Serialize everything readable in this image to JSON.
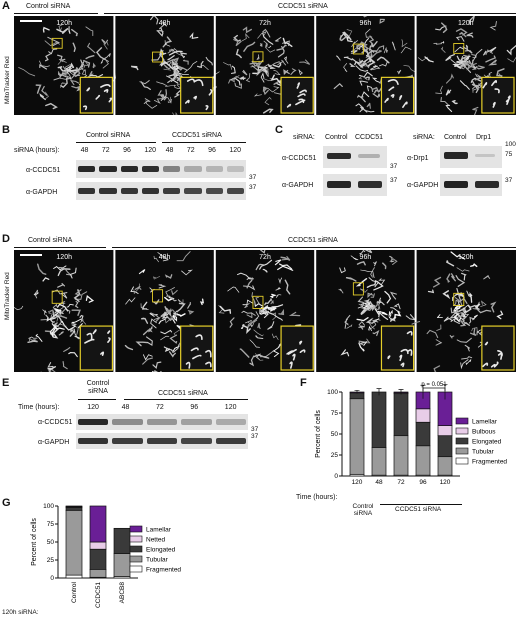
{
  "panels": {
    "A": {
      "letter": "A",
      "control_header": "Control siRNA",
      "treatment_header": "CCDC51 siRNA",
      "stain": "MitoTracker Red",
      "timepoints": [
        "120h",
        "48h",
        "72h",
        "96h",
        "120h"
      ]
    },
    "B": {
      "letter": "B",
      "row_label": "siRNA (hours):",
      "control_header": "Control siRNA",
      "treatment_header": "CCDC51 siRNA",
      "lanes": [
        "48",
        "72",
        "96",
        "120",
        "48",
        "72",
        "96",
        "120"
      ],
      "blots": [
        "α-CCDC51",
        "α-GAPDH"
      ],
      "markers": [
        "37",
        "37"
      ]
    },
    "C": {
      "letter": "C",
      "left": {
        "row_label": "siRNA:",
        "lanes": [
          "Control",
          "CCDC51"
        ],
        "blots": [
          "α-CCDC51",
          "α-GAPDH"
        ],
        "markers": [
          "37",
          "37"
        ]
      },
      "right": {
        "row_label": "siRNA:",
        "lanes": [
          "Control",
          "Drp1"
        ],
        "blots": [
          "α-Drp1",
          "α-GAPDH"
        ],
        "markers": [
          "100",
          "75",
          "37"
        ]
      }
    },
    "D": {
      "letter": "D",
      "control_header": "Control siRNA",
      "treatment_header": "CCDC51 siRNA",
      "stain": "MitoTracker Red",
      "timepoints": [
        "120h",
        "48h",
        "72h",
        "96h",
        "120h"
      ]
    },
    "E": {
      "letter": "E",
      "row_label": "Time (hours):",
      "control_header": "Control siRNA",
      "treatment_header": "CCDC51 siRNA",
      "lanes": [
        "120",
        "48",
        "72",
        "96",
        "120"
      ],
      "blots": [
        "α-CCDC51",
        "α-GAPDH"
      ],
      "markers": [
        "37",
        "37"
      ]
    },
    "F": {
      "letter": "F",
      "pvalue": "p = 0.051",
      "row_label": "Time (hours):",
      "control_label": "Control siRNA",
      "treatment_label": "CCDC51 siRNA"
    },
    "G": {
      "letter": "G",
      "row_label": "120h siRNA:"
    }
  },
  "chart_data": [
    {
      "type": "bar",
      "panel": "F",
      "stacked": true,
      "categories": [
        "120",
        "48",
        "72",
        "96",
        "120"
      ],
      "ylabel": "Percent of cells",
      "ylim": [
        0,
        100
      ],
      "yticks": [
        "0",
        "25",
        "50",
        "75",
        "100"
      ],
      "legend_position": "right",
      "series": [
        {
          "name": "Fragmented",
          "color": "#ffffff",
          "values": [
            2,
            1,
            1,
            1,
            1
          ]
        },
        {
          "name": "Tubular",
          "color": "#9a9a9a",
          "values": [
            90,
            33,
            47,
            35,
            22
          ]
        },
        {
          "name": "Elongated",
          "color": "#3a3a3a",
          "values": [
            7,
            66,
            50,
            28,
            25
          ]
        },
        {
          "name": "Bulbous",
          "color": "#e8cde8",
          "values": [
            0,
            0,
            1,
            16,
            12
          ]
        },
        {
          "name": "Lamellar",
          "color": "#6a1f96",
          "values": [
            1,
            0,
            1,
            20,
            40
          ]
        }
      ],
      "error_bars": [
        2,
        4,
        3,
        8,
        9
      ]
    },
    {
      "type": "bar",
      "panel": "G",
      "stacked": true,
      "categories": [
        "Control",
        "CCDC51",
        "ABCB8"
      ],
      "ylabel": "Percent of cells",
      "ylim": [
        0,
        100
      ],
      "yticks": [
        "0",
        "25",
        "50",
        "75",
        "100"
      ],
      "legend_position": "right",
      "series": [
        {
          "name": "Fragmented",
          "color": "#ffffff",
          "values": [
            4,
            1,
            2
          ]
        },
        {
          "name": "Tubular",
          "color": "#9a9a9a",
          "values": [
            90,
            11,
            32
          ]
        },
        {
          "name": "Elongated",
          "color": "#3a3a3a",
          "values": [
            4,
            28,
            35
          ]
        },
        {
          "name": "Netted",
          "color": "#e8cde8",
          "values": [
            1,
            10,
            0
          ]
        },
        {
          "name": "Lamellar",
          "color": "#6a1f96",
          "values": [
            1,
            50,
            0
          ]
        }
      ]
    }
  ]
}
